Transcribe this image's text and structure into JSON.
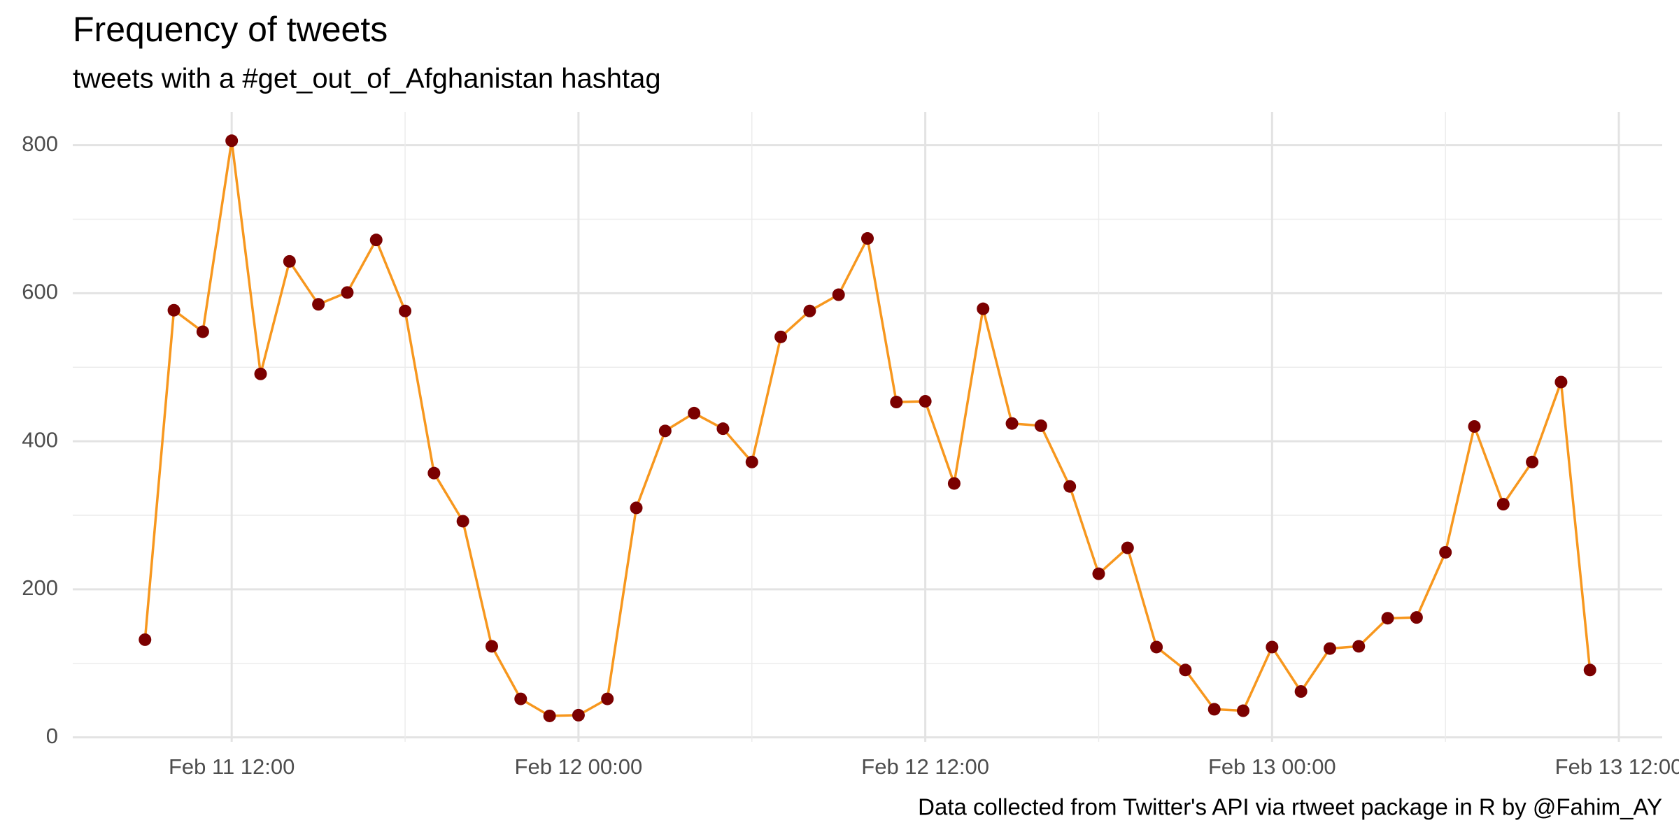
{
  "chart_data": {
    "type": "line",
    "title": "Frequency of tweets",
    "subtitle": "tweets with a #get_out_of_Afghanistan hashtag",
    "caption": "Data collected from Twitter's API via rtweet package in R by @Fahim_AY",
    "x": [
      "Feb 11 09:00",
      "Feb 11 10:00",
      "Feb 11 11:00",
      "Feb 11 12:00",
      "Feb 11 13:00",
      "Feb 11 14:00",
      "Feb 11 15:00",
      "Feb 11 16:00",
      "Feb 11 17:00",
      "Feb 11 18:00",
      "Feb 11 19:00",
      "Feb 11 20:00",
      "Feb 11 21:00",
      "Feb 11 22:00",
      "Feb 11 23:00",
      "Feb 12 00:00",
      "Feb 12 01:00",
      "Feb 12 02:00",
      "Feb 12 03:00",
      "Feb 12 04:00",
      "Feb 12 05:00",
      "Feb 12 06:00",
      "Feb 12 07:00",
      "Feb 12 08:00",
      "Feb 12 09:00",
      "Feb 12 10:00",
      "Feb 12 11:00",
      "Feb 12 12:00",
      "Feb 12 13:00",
      "Feb 12 14:00",
      "Feb 12 15:00",
      "Feb 12 16:00",
      "Feb 12 17:00",
      "Feb 12 18:00",
      "Feb 12 19:00",
      "Feb 12 20:00",
      "Feb 12 21:00",
      "Feb 12 22:00",
      "Feb 12 23:00",
      "Feb 13 00:00",
      "Feb 13 01:00",
      "Feb 13 02:00",
      "Feb 13 03:00",
      "Feb 13 04:00",
      "Feb 13 05:00",
      "Feb 13 06:00",
      "Feb 13 07:00",
      "Feb 13 08:00",
      "Feb 13 09:00",
      "Feb 13 10:00",
      "Feb 13 11:00"
    ],
    "values": [
      132,
      577,
      548,
      806,
      491,
      643,
      585,
      601,
      672,
      576,
      357,
      292,
      123,
      52,
      29,
      30,
      52,
      310,
      414,
      438,
      417,
      372,
      541,
      576,
      598,
      674,
      453,
      454,
      343,
      579,
      424,
      421,
      339,
      221,
      256,
      122,
      91,
      38,
      36,
      122,
      62,
      120,
      123,
      161,
      162,
      250,
      420,
      315,
      372,
      480,
      91
    ],
    "color": "#f7971e",
    "point_color": "#7b0000",
    "xlim": [
      "Feb 11 06:30",
      "Feb 13 13:30"
    ],
    "xticks": [
      "Feb 11 12:00",
      "Feb 12 00:00",
      "Feb 12 12:00",
      "Feb 13 00:00",
      "Feb 13 12:00"
    ],
    "ylim": [
      -6,
      845
    ],
    "yticks": [
      0,
      200,
      400,
      600,
      800
    ],
    "grid": true
  }
}
